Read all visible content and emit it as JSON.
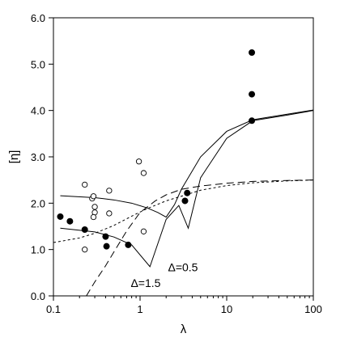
{
  "chart_data": {
    "type": "scatter",
    "title": "",
    "xlabel": "λ",
    "ylabel": "[η]",
    "xscale": "log",
    "xlim": [
      0.1,
      100
    ],
    "ylim": [
      0.0,
      6.0
    ],
    "x_ticks": [
      {
        "value": 0.1,
        "label": "0.1"
      },
      {
        "value": 1,
        "label": "1"
      },
      {
        "value": 10,
        "label": "10"
      },
      {
        "value": 100,
        "label": "100"
      }
    ],
    "y_ticks": [
      {
        "value": 0.0,
        "label": "0.0"
      },
      {
        "value": 1.0,
        "label": "1.0"
      },
      {
        "value": 2.0,
        "label": "2.0"
      },
      {
        "value": 3.0,
        "label": "3.0"
      },
      {
        "value": 4.0,
        "label": "4.0"
      },
      {
        "value": 5.0,
        "label": "5.0"
      },
      {
        "value": 6.0,
        "label": "6.0"
      }
    ],
    "grid": false,
    "legend": "none",
    "annotations": [
      {
        "text": "Δ=0.5",
        "x": 2.1,
        "y": 0.62
      },
      {
        "text": "Δ=1.5",
        "x": 0.78,
        "y": 0.28
      }
    ],
    "series": [
      {
        "marker": "filled-circle",
        "color": "#000000",
        "points": [
          {
            "x": 0.12,
            "y": 1.71
          },
          {
            "x": 0.155,
            "y": 1.61
          },
          {
            "x": 0.23,
            "y": 1.43
          },
          {
            "x": 0.4,
            "y": 1.28
          },
          {
            "x": 0.41,
            "y": 1.07
          },
          {
            "x": 0.73,
            "y": 1.1
          },
          {
            "x": 3.3,
            "y": 2.05
          },
          {
            "x": 3.5,
            "y": 2.22
          },
          {
            "x": 19.5,
            "y": 5.25
          },
          {
            "x": 19.5,
            "y": 4.35
          },
          {
            "x": 19.5,
            "y": 3.78
          }
        ]
      },
      {
        "marker": "open-circle",
        "color": "#000000",
        "points": [
          {
            "x": 0.23,
            "y": 2.4
          },
          {
            "x": 0.23,
            "y": 1.0
          },
          {
            "x": 0.28,
            "y": 2.1
          },
          {
            "x": 0.29,
            "y": 2.15
          },
          {
            "x": 0.3,
            "y": 1.92
          },
          {
            "x": 0.3,
            "y": 1.8
          },
          {
            "x": 0.29,
            "y": 1.7
          },
          {
            "x": 0.44,
            "y": 2.27
          },
          {
            "x": 0.44,
            "y": 1.78
          },
          {
            "x": 0.97,
            "y": 2.9
          },
          {
            "x": 1.1,
            "y": 2.65
          },
          {
            "x": 1.1,
            "y": 1.39
          }
        ]
      },
      {
        "line": "solid",
        "color": "#000000",
        "points": [
          {
            "x": 0.12,
            "y": 2.16
          },
          {
            "x": 0.3,
            "y": 2.12
          },
          {
            "x": 0.5,
            "y": 2.07
          },
          {
            "x": 0.8,
            "y": 2.0
          },
          {
            "x": 1.2,
            "y": 1.9
          },
          {
            "x": 1.6,
            "y": 1.8
          },
          {
            "x": 2.0,
            "y": 1.7
          },
          {
            "x": 2.5,
            "y": 1.97
          },
          {
            "x": 3.0,
            "y": 2.3
          },
          {
            "x": 5.0,
            "y": 3.0
          },
          {
            "x": 10.0,
            "y": 3.55
          },
          {
            "x": 20.0,
            "y": 3.8
          },
          {
            "x": 50.0,
            "y": 3.92
          },
          {
            "x": 100.0,
            "y": 4.01
          }
        ]
      },
      {
        "line": "solid",
        "color": "#000000",
        "points": [
          {
            "x": 0.12,
            "y": 1.46
          },
          {
            "x": 0.3,
            "y": 1.38
          },
          {
            "x": 0.5,
            "y": 1.27
          },
          {
            "x": 0.8,
            "y": 1.1
          },
          {
            "x": 1.3,
            "y": 0.63
          },
          {
            "x": 2.0,
            "y": 1.65
          },
          {
            "x": 2.8,
            "y": 1.95
          },
          {
            "x": 3.6,
            "y": 1.46
          },
          {
            "x": 5.0,
            "y": 2.55
          },
          {
            "x": 10.0,
            "y": 3.4
          },
          {
            "x": 20.0,
            "y": 3.78
          },
          {
            "x": 50.0,
            "y": 3.9
          },
          {
            "x": 100.0,
            "y": 4.0
          }
        ]
      },
      {
        "line": "dashed",
        "color": "#000000",
        "points": [
          {
            "x": 0.24,
            "y": 0.0
          },
          {
            "x": 0.3,
            "y": 0.3
          },
          {
            "x": 0.4,
            "y": 0.65
          },
          {
            "x": 0.5,
            "y": 0.95
          },
          {
            "x": 0.7,
            "y": 1.4
          },
          {
            "x": 1.0,
            "y": 1.8
          },
          {
            "x": 1.5,
            "y": 2.05
          },
          {
            "x": 2.0,
            "y": 2.18
          },
          {
            "x": 3.0,
            "y": 2.3
          },
          {
            "x": 5.0,
            "y": 2.37
          },
          {
            "x": 10.0,
            "y": 2.43
          },
          {
            "x": 20.0,
            "y": 2.47
          },
          {
            "x": 50.0,
            "y": 2.49
          },
          {
            "x": 100.0,
            "y": 2.5
          }
        ]
      },
      {
        "line": "dotted",
        "color": "#000000",
        "points": [
          {
            "x": 0.1,
            "y": 1.15
          },
          {
            "x": 0.2,
            "y": 1.25
          },
          {
            "x": 0.3,
            "y": 1.35
          },
          {
            "x": 0.5,
            "y": 1.52
          },
          {
            "x": 0.8,
            "y": 1.72
          },
          {
            "x": 1.2,
            "y": 1.88
          },
          {
            "x": 2.0,
            "y": 2.05
          },
          {
            "x": 3.0,
            "y": 2.15
          },
          {
            "x": 5.0,
            "y": 2.28
          },
          {
            "x": 10.0,
            "y": 2.38
          },
          {
            "x": 20.0,
            "y": 2.44
          },
          {
            "x": 50.0,
            "y": 2.48
          },
          {
            "x": 100.0,
            "y": 2.5
          }
        ]
      }
    ]
  }
}
